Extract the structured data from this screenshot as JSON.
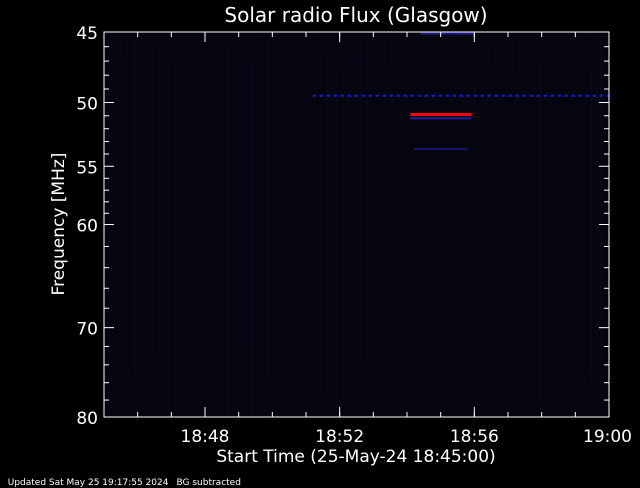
{
  "chart_data": {
    "type": "heatmap",
    "title": "Solar radio Flux (Glasgow)",
    "xlabel": "Start Time (25-May-24 18:45:00)",
    "ylabel": "Frequency [MHz]",
    "x_range_minutes": [
      0,
      15
    ],
    "x_ticks": [
      {
        "minute": 3,
        "label": "18:48"
      },
      {
        "minute": 7,
        "label": "18:52"
      },
      {
        "minute": 11,
        "label": "18:56"
      },
      {
        "minute": 15,
        "label": "19:00"
      }
    ],
    "y_scale": "log",
    "y_range_mhz": [
      45,
      80
    ],
    "y_ticks": [
      45,
      50,
      55,
      60,
      70,
      80
    ],
    "y_ticks_labeled": true,
    "features": [
      {
        "kind": "band",
        "freq_mhz": 49.5,
        "start_min": 6.2,
        "end_min": 15,
        "color": "#1a1aff",
        "style": "dashed"
      },
      {
        "kind": "band",
        "freq_mhz": 45.1,
        "start_min": 9.4,
        "end_min": 11.0,
        "color": "#1a1a90",
        "style": "solid"
      },
      {
        "kind": "band",
        "freq_mhz": 50.9,
        "start_min": 9.1,
        "end_min": 10.9,
        "color": "#ff0000",
        "style": "solid"
      },
      {
        "kind": "band",
        "freq_mhz": 51.2,
        "start_min": 9.1,
        "end_min": 10.9,
        "color": "#2020a0",
        "style": "solid"
      },
      {
        "kind": "band",
        "freq_mhz": 53.6,
        "start_min": 9.2,
        "end_min": 10.8,
        "color": "#15156a",
        "style": "solid"
      }
    ],
    "colors": {
      "background": "#000000",
      "axis": "#ffffff",
      "spectrogram_base": "#05050f"
    }
  },
  "footer": {
    "updated": "Updated Sat May 25 19:17:55 2024",
    "note": "BG subtracted"
  }
}
